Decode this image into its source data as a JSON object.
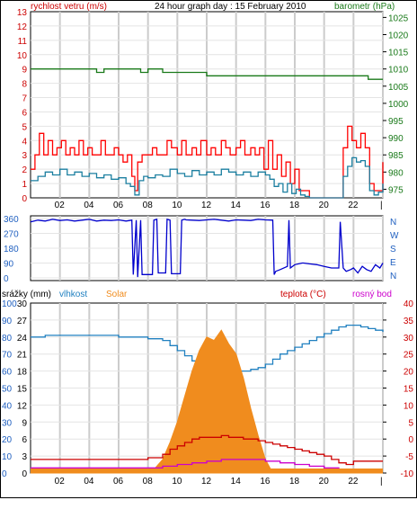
{
  "colors": {
    "wind_gust": "#ff0000",
    "wind_avg": "#1b7fa0",
    "pressure": "#1a7a1a",
    "direction": "#0000cc",
    "humidity": "#2080c0",
    "solar": "#f08c1e",
    "temperature": "#cc0000",
    "dewpoint": "#cc00cc",
    "axis_blue": "#2060c0",
    "axis_red": "#cc0000",
    "axis_green": "#1a7a1a",
    "grid": "#cccccc"
  },
  "header": {
    "wind_label": "rychlost vetru (m/s)",
    "title": "24 hour graph day : 15 February 2010",
    "pressure_label": "barometr (hPa)"
  },
  "x_ticks": [
    "02",
    "04",
    "06",
    "08",
    "10",
    "12",
    "14",
    "16",
    "18",
    "20",
    "22",
    "|"
  ],
  "chart_data": [
    {
      "type": "line",
      "name": "wind-pressure",
      "x_range": [
        0,
        24
      ],
      "left_axis": {
        "label": "rychlost vetru (m/s)",
        "range": [
          0,
          13
        ],
        "ticks": [
          0,
          1,
          2,
          3,
          4,
          5,
          6,
          7,
          8,
          9,
          10,
          11,
          12,
          13
        ]
      },
      "right_axis": {
        "label": "barometr (hPa)",
        "range": [
          972.5,
          1026.67
        ],
        "ticks": [
          975,
          980,
          985,
          990,
          995,
          1000,
          1005,
          1010,
          1015,
          1020,
          1025
        ]
      },
      "grid": true,
      "series": [
        {
          "key": "gust",
          "axis": "left",
          "x": [
            0,
            0.3,
            0.6,
            0.9,
            1.2,
            1.5,
            1.8,
            2.1,
            2.4,
            2.7,
            3,
            3.3,
            3.6,
            3.9,
            4.2,
            4.5,
            4.8,
            5.1,
            5.4,
            5.7,
            6,
            6.3,
            6.6,
            6.9,
            7.1,
            7.3,
            7.6,
            8,
            8.3,
            8.6,
            9,
            9.3,
            9.6,
            10,
            10.3,
            10.6,
            11,
            11.3,
            11.6,
            12,
            12.3,
            12.6,
            13,
            13.3,
            13.6,
            14,
            14.3,
            14.6,
            15,
            15.3,
            15.6,
            15.9,
            16.2,
            16.5,
            16.8,
            17.1,
            17.4,
            17.7,
            18,
            18.3,
            18.6,
            19,
            19.5,
            20,
            20.5,
            21,
            21.3,
            21.6,
            21.9,
            22.2,
            22.5,
            22.8,
            23.1,
            23.4,
            23.7,
            24
          ],
          "values": [
            2,
            3,
            4.5,
            3,
            4,
            3,
            3.5,
            4,
            3,
            3.5,
            3,
            4,
            3,
            3.5,
            3,
            3,
            4,
            3,
            3,
            3.5,
            3,
            2.5,
            3,
            1.5,
            0.5,
            2.5,
            3,
            3,
            3.5,
            3,
            3,
            4,
            3.5,
            3,
            4,
            3,
            3.5,
            3,
            4,
            3,
            3.5,
            3,
            4,
            3.5,
            3,
            3.5,
            4,
            3,
            3.5,
            3,
            3.5,
            2,
            4,
            2,
            3,
            1.5,
            2.5,
            1,
            2,
            0.5,
            0.5,
            0,
            0,
            0,
            0,
            0,
            3.5,
            5,
            4,
            3.5,
            4.5,
            3.5,
            1,
            0.5,
            0.5,
            2.5
          ]
        },
        {
          "key": "avg",
          "axis": "left",
          "x": [
            0,
            0.5,
            1,
            1.5,
            2,
            2.5,
            3,
            3.5,
            4,
            4.5,
            5,
            5.5,
            6,
            6.5,
            6.8,
            7.1,
            7.4,
            7.7,
            8,
            8.5,
            9,
            9.5,
            10,
            10.5,
            11,
            11.5,
            12,
            12.5,
            13,
            13.5,
            14,
            14.5,
            15,
            15.5,
            16,
            16.3,
            16.6,
            16.9,
            17.2,
            17.5,
            17.8,
            18.1,
            18.4,
            18.7,
            19,
            19.5,
            20,
            20.5,
            21,
            21.3,
            21.6,
            21.9,
            22.2,
            22.5,
            22.8,
            23.1,
            23.4,
            23.7,
            24
          ],
          "values": [
            1.2,
            1.5,
            1.8,
            1.6,
            2,
            1.6,
            1.8,
            1.5,
            1.7,
            1.4,
            1.6,
            1.3,
            1.4,
            1.0,
            0.8,
            0.2,
            1.2,
            1.5,
            1.4,
            1.6,
            1.5,
            2,
            1.7,
            1.5,
            1.9,
            1.6,
            1.8,
            1.6,
            2,
            1.8,
            1.6,
            1.8,
            1.5,
            1.8,
            1.6,
            1.3,
            0.8,
            1.0,
            0.4,
            1.0,
            0.3,
            0.6,
            0.2,
            0.1,
            0,
            0,
            0,
            0,
            0,
            1.5,
            2.2,
            2.8,
            2.5,
            2.6,
            2.2,
            0.5,
            0.2,
            0.4,
            1.0
          ]
        },
        {
          "key": "pressure",
          "axis": "right",
          "x": [
            0,
            4.5,
            4.5,
            5,
            5,
            7.5,
            7.5,
            8,
            8,
            9,
            9,
            12,
            12,
            18,
            18,
            23,
            23,
            24
          ],
          "values": [
            1010,
            1010,
            1009,
            1009,
            1010,
            1010,
            1009,
            1009,
            1010,
            1010,
            1009,
            1009,
            1008,
            1008,
            1008,
            1008,
            1007,
            1007
          ]
        }
      ]
    },
    {
      "type": "line",
      "name": "wind-direction",
      "x_range": [
        0,
        24
      ],
      "left_axis": {
        "range": [
          0,
          360
        ],
        "ticks": [
          0,
          90,
          180,
          270,
          360
        ]
      },
      "right_axis": {
        "labels": [
          "N",
          "W",
          "S",
          "E",
          "N"
        ]
      },
      "grid": true,
      "series": [
        {
          "key": "direction",
          "x": [
            0,
            0.5,
            1,
            1.5,
            2,
            2.5,
            3,
            3.5,
            4,
            4.5,
            5,
            5.5,
            6,
            6.5,
            6.9,
            7,
            7.2,
            7.3,
            7.5,
            7.6,
            8.3,
            8.4,
            8.6,
            8.7,
            9.2,
            9.3,
            9.5,
            9.6,
            10.2,
            10.3,
            10.5,
            10.6,
            11,
            11.5,
            12,
            12.5,
            13,
            13.5,
            14,
            14.5,
            15,
            15.5,
            16,
            16.5,
            16.6,
            16.7,
            17,
            17.5,
            17.6,
            17.7,
            18,
            18.5,
            18.6,
            19,
            19.5,
            20,
            20.5,
            21,
            21.1,
            21.3,
            21.5,
            21.8,
            22,
            22.3,
            22.6,
            22.9,
            23.2,
            23.5,
            23.8,
            24
          ],
          "values": [
            340,
            350,
            345,
            355,
            348,
            352,
            345,
            350,
            355,
            345,
            350,
            348,
            352,
            345,
            350,
            20,
            350,
            5,
            350,
            20,
            20,
            350,
            355,
            30,
            30,
            355,
            350,
            25,
            25,
            350,
            355,
            352,
            350,
            348,
            352,
            355,
            350,
            345,
            352,
            350,
            348,
            355,
            352,
            350,
            20,
            40,
            50,
            70,
            350,
            60,
            80,
            90,
            90,
            85,
            80,
            70,
            60,
            60,
            340,
            60,
            40,
            50,
            60,
            30,
            70,
            50,
            40,
            80,
            60,
            90
          ]
        }
      ]
    },
    {
      "type": "line",
      "name": "rain-humidity-solar-temperature",
      "x_range": [
        0,
        24
      ],
      "axes": {
        "rain": {
          "label": "srážky (mm)",
          "range": [
            0,
            30
          ],
          "ticks": [
            0,
            3,
            6,
            9,
            12,
            15,
            18,
            21,
            24,
            27,
            30
          ]
        },
        "humidity": {
          "label": "vlhkost",
          "range": [
            0,
            100
          ],
          "ticks": [
            0,
            10,
            20,
            30,
            40,
            50,
            60,
            70,
            80,
            90,
            100
          ]
        },
        "solar": {
          "label": "Solar",
          "range": [
            0,
            1000
          ]
        },
        "temperature": {
          "label": "teplota (°C)",
          "range": [
            -10,
            40
          ],
          "ticks": [
            -10,
            -5,
            0,
            5,
            10,
            15,
            20,
            25,
            30,
            35,
            40
          ]
        },
        "dewpoint": {
          "label": "rosný bod"
        }
      },
      "grid": true,
      "series": [
        {
          "key": "humidity",
          "x": [
            0,
            1,
            2,
            3,
            4,
            5,
            6,
            7,
            8,
            9,
            9.5,
            10,
            10.5,
            11,
            11.5,
            12,
            12.5,
            13,
            13.5,
            14,
            14.5,
            15,
            15.5,
            16,
            16.5,
            17,
            17.5,
            18,
            18.5,
            19,
            19.5,
            20,
            20.5,
            21,
            21.5,
            22,
            22.5,
            23,
            23.5,
            24
          ],
          "values": [
            80,
            81,
            81,
            81,
            81,
            81,
            80,
            80,
            79,
            78,
            75,
            72,
            69,
            66,
            63,
            61,
            61,
            62,
            61,
            60,
            60,
            61,
            62,
            64,
            67,
            70,
            72,
            74,
            76,
            78,
            80,
            82,
            84,
            86,
            87,
            87,
            86,
            85,
            84,
            83
          ]
        },
        {
          "key": "solar",
          "x": [
            0,
            8,
            8.5,
            9,
            9.5,
            10,
            10.5,
            11,
            11.5,
            12,
            12.5,
            13,
            13.5,
            14,
            14.5,
            15,
            15.5,
            16,
            16.5,
            24
          ],
          "values": [
            0,
            0,
            30,
            80,
            180,
            300,
            450,
            600,
            720,
            800,
            780,
            840,
            760,
            700,
            560,
            380,
            220,
            80,
            0,
            0
          ]
        },
        {
          "key": "temperature",
          "x": [
            0,
            1,
            2,
            3,
            4,
            5,
            6,
            7,
            8,
            9,
            9.5,
            10,
            10.5,
            11,
            11.5,
            12,
            12.5,
            13,
            13.5,
            14,
            14.5,
            15,
            15.5,
            16,
            16.5,
            17,
            17.5,
            18,
            18.5,
            19,
            19.5,
            20,
            20.5,
            21,
            21.5,
            22,
            22.5,
            23,
            23.5,
            24
          ],
          "values": [
            -6,
            -6,
            -6,
            -6,
            -6,
            -6,
            -6,
            -6,
            -5.5,
            -4.5,
            -3,
            -2,
            -1,
            0,
            0.5,
            0.5,
            0.5,
            1,
            0.5,
            0.5,
            0,
            0,
            -0.5,
            -1,
            -1.5,
            -2,
            -2.5,
            -3,
            -3.5,
            -4,
            -4.5,
            -5,
            -6,
            -7,
            -7.5,
            -6.5,
            -6.5,
            -6.5,
            -6.5,
            -6.5
          ]
        },
        {
          "key": "dewpoint",
          "x": [
            0,
            1,
            2,
            3,
            4,
            5,
            6,
            7,
            8,
            9,
            10,
            11,
            12,
            13,
            14,
            15,
            16,
            17,
            18,
            19,
            20,
            21,
            22,
            23,
            24
          ],
          "values": [
            -8.5,
            -8.5,
            -8.5,
            -8.5,
            -8.5,
            -8.5,
            -8.5,
            -8.5,
            -8.5,
            -8,
            -7.5,
            -7,
            -6.5,
            -6,
            -6,
            -6,
            -6.5,
            -7,
            -7.5,
            -8,
            -8.5,
            -9,
            -9,
            -9,
            -9
          ]
        },
        {
          "key": "rain",
          "x": [
            0,
            24
          ],
          "values": [
            0.8,
            0.8
          ]
        }
      ]
    }
  ]
}
